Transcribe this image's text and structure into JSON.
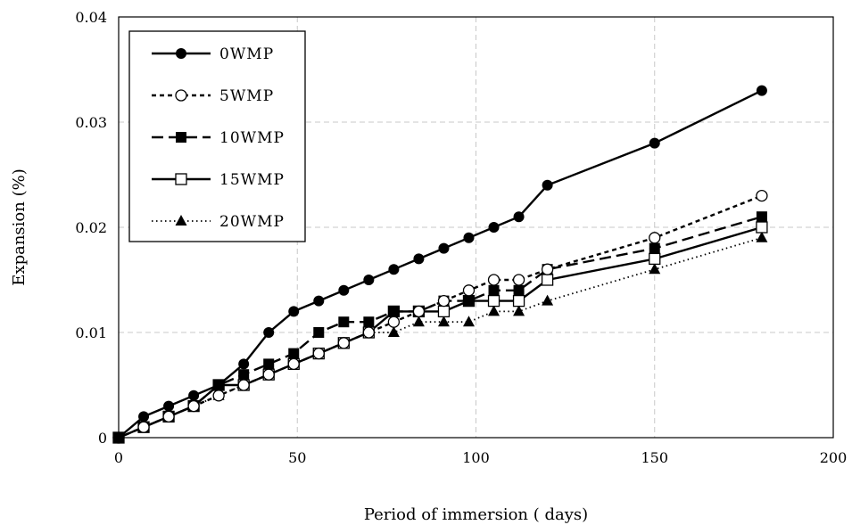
{
  "chart_data": {
    "type": "line",
    "xlabel": "Period of immersion ( days)",
    "ylabel": "Expansion (%)",
    "xlim": [
      0,
      200
    ],
    "ylim": [
      0,
      0.04
    ],
    "x_ticks": [
      "0",
      "50",
      "100",
      "150",
      "200"
    ],
    "y_ticks": [
      "0",
      "0.01",
      "0.02",
      "0.03",
      "0.04"
    ],
    "grid": true,
    "legend_position": "top-left",
    "series": [
      {
        "name": "0WMP",
        "marker": "filled-circle",
        "line": "solid",
        "x": [
          0,
          7,
          14,
          21,
          28,
          35,
          42,
          49,
          56,
          63,
          70,
          77,
          84,
          91,
          98,
          105,
          112,
          120,
          150,
          180
        ],
        "y": [
          0,
          0.002,
          0.003,
          0.004,
          0.005,
          0.007,
          0.01,
          0.012,
          0.013,
          0.014,
          0.015,
          0.016,
          0.017,
          0.018,
          0.019,
          0.02,
          0.021,
          0.024,
          0.028,
          0.033
        ]
      },
      {
        "name": "5WMP",
        "marker": "open-circle",
        "line": "short-dash",
        "x": [
          0,
          7,
          14,
          21,
          28,
          35,
          42,
          49,
          56,
          63,
          70,
          77,
          84,
          91,
          98,
          105,
          112,
          120,
          150,
          180
        ],
        "y": [
          0,
          0.001,
          0.002,
          0.003,
          0.004,
          0.005,
          0.006,
          0.007,
          0.008,
          0.009,
          0.01,
          0.011,
          0.012,
          0.013,
          0.014,
          0.015,
          0.015,
          0.016,
          0.019,
          0.023
        ]
      },
      {
        "name": "10WMP",
        "marker": "filled-square",
        "line": "long-dash",
        "x": [
          0,
          7,
          14,
          21,
          28,
          35,
          42,
          49,
          56,
          63,
          70,
          77,
          84,
          91,
          98,
          105,
          112,
          120,
          150,
          180
        ],
        "y": [
          0,
          0.001,
          0.002,
          0.003,
          0.005,
          0.006,
          0.007,
          0.008,
          0.01,
          0.011,
          0.011,
          0.012,
          0.012,
          0.013,
          0.013,
          0.014,
          0.014,
          0.016,
          0.018,
          0.021
        ]
      },
      {
        "name": "15WMP",
        "marker": "open-square",
        "line": "solid",
        "x": [
          0,
          7,
          14,
          21,
          28,
          35,
          42,
          49,
          56,
          63,
          70,
          77,
          84,
          91,
          98,
          105,
          112,
          120,
          150,
          180
        ],
        "y": [
          0,
          0.001,
          0.002,
          0.003,
          0.005,
          0.005,
          0.006,
          0.007,
          0.008,
          0.009,
          0.01,
          0.012,
          0.012,
          0.012,
          0.013,
          0.013,
          0.013,
          0.015,
          0.017,
          0.02
        ]
      },
      {
        "name": "20WMP",
        "marker": "filled-triangle",
        "line": "dotted",
        "x": [
          0,
          7,
          14,
          21,
          28,
          35,
          42,
          49,
          56,
          63,
          70,
          77,
          84,
          91,
          98,
          105,
          112,
          120,
          150,
          180
        ],
        "y": [
          0,
          0.001,
          0.002,
          0.003,
          0.004,
          0.005,
          0.006,
          0.007,
          0.008,
          0.009,
          0.01,
          0.01,
          0.011,
          0.011,
          0.011,
          0.012,
          0.012,
          0.013,
          0.016,
          0.019
        ]
      }
    ]
  }
}
